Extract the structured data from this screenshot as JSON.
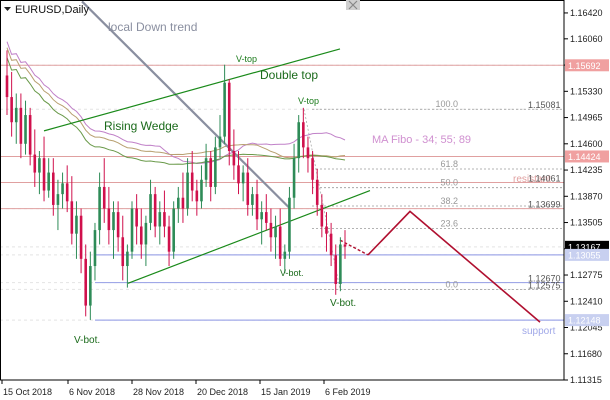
{
  "chart_data": {
    "type": "candlestick",
    "title": "EURUSD,Daily",
    "x_tick_labels": [
      "15 Oct 2018",
      "6 Nov 2018",
      "28 Nov 2018",
      "20 Dec 2018",
      "15 Jan 2019",
      "6 Feb 2019"
    ],
    "y_tick_labels": [
      "1.16420",
      "1.16060",
      "1.15695",
      "1.15330",
      "1.14965",
      "1.14600",
      "1.14235",
      "1.13870",
      "1.13505",
      "1.13140",
      "1.12775",
      "1.12410",
      "1.12045",
      "1.11680",
      "1.11315"
    ],
    "ylim": [
      1.11315,
      1.166
    ],
    "current_price": "1.13167",
    "price_labels": [
      {
        "text": "1.15692",
        "value": 1.15692,
        "color": "#f0a0a0",
        "kind": "box"
      },
      {
        "text": "1.15081",
        "value": 1.15081,
        "color": "#333333",
        "kind": "plain"
      },
      {
        "text": "1.14424",
        "value": 1.14424,
        "color": "#f0a0a0",
        "kind": "box"
      },
      {
        "text": "1.14061",
        "value": 1.14061,
        "color": "#333333",
        "kind": "plain"
      },
      {
        "text": "1.13699",
        "value": 1.13699,
        "color": "#333333",
        "kind": "plain"
      },
      {
        "text": "1.13167",
        "value": 1.13167,
        "color": "#000000",
        "kind": "box"
      },
      {
        "text": "1.13055",
        "value": 1.13055,
        "color": "#c8d0f0",
        "kind": "box"
      },
      {
        "text": "1.12670",
        "value": 1.1267,
        "color": "#333333",
        "kind": "plain"
      },
      {
        "text": "1.12575",
        "value": 1.12575,
        "color": "#333333",
        "kind": "plain"
      },
      {
        "text": "1.12148",
        "value": 1.12148,
        "color": "#c8d0f0",
        "kind": "box"
      }
    ],
    "fibo_levels": [
      {
        "label": "100.0",
        "value": 1.15081
      },
      {
        "label": "61.8",
        "value": 1.1425
      },
      {
        "label": "50.0",
        "value": 1.1399
      },
      {
        "label": "38.2",
        "value": 1.13735
      },
      {
        "label": "23.6",
        "value": 1.1342
      },
      {
        "label": "0.0",
        "value": 1.12575
      }
    ],
    "annotations": [
      "local Down trend",
      "V-top",
      "Double top",
      "V-top",
      "Rising Wedge",
      "MA Fibo - 34; 55; 89",
      "resistant",
      "V-bot.",
      "V-bot.",
      "V-bot.",
      "support"
    ],
    "colors": {
      "bull": "#2e8b57",
      "bear": "#d0104c",
      "wedge": "#1a8a1a",
      "downtrend": "#8a8fa0",
      "ma34": "#c080c8",
      "ma55": "#b8a070",
      "ma89": "#6a9a4a",
      "resistant": "#e0a0a0",
      "support": "#a0a8e8",
      "forecast": "#b01030"
    },
    "ma_legend": "MA Fibo - 34; 55; 89",
    "candles": [
      [
        1.1555,
        1.159,
        1.15,
        1.1525
      ],
      [
        1.1525,
        1.156,
        1.147,
        1.149
      ],
      [
        1.149,
        1.153,
        1.146,
        1.151
      ],
      [
        1.151,
        1.153,
        1.144,
        1.146
      ],
      [
        1.146,
        1.152,
        1.1445,
        1.15
      ],
      [
        1.15,
        1.151,
        1.143,
        1.1445
      ],
      [
        1.1445,
        1.148,
        1.14,
        1.142
      ],
      [
        1.142,
        1.145,
        1.139,
        1.144
      ],
      [
        1.144,
        1.147,
        1.138,
        1.1395
      ],
      [
        1.1395,
        1.144,
        1.1385,
        1.142
      ],
      [
        1.142,
        1.144,
        1.136,
        1.1375
      ],
      [
        1.1375,
        1.141,
        1.134,
        1.139
      ],
      [
        1.139,
        1.142,
        1.137,
        1.1405
      ],
      [
        1.1405,
        1.143,
        1.1365,
        1.138
      ],
      [
        1.138,
        1.1415,
        1.132,
        1.1335
      ],
      [
        1.1335,
        1.138,
        1.13,
        1.136
      ],
      [
        1.136,
        1.137,
        1.128,
        1.13
      ],
      [
        1.13,
        1.132,
        1.122,
        1.1235
      ],
      [
        1.1235,
        1.131,
        1.1215,
        1.129
      ],
      [
        1.129,
        1.135,
        1.127,
        1.134
      ],
      [
        1.134,
        1.142,
        1.132,
        1.14
      ],
      [
        1.14,
        1.144,
        1.135,
        1.137
      ],
      [
        1.137,
        1.14,
        1.132,
        1.134
      ],
      [
        1.134,
        1.138,
        1.13,
        1.1365
      ],
      [
        1.1365,
        1.138,
        1.131,
        1.133
      ],
      [
        1.133,
        1.136,
        1.127,
        1.129
      ],
      [
        1.129,
        1.132,
        1.126,
        1.131
      ],
      [
        1.131,
        1.138,
        1.13,
        1.137
      ],
      [
        1.137,
        1.139,
        1.132,
        1.1345
      ],
      [
        1.1345,
        1.137,
        1.13,
        1.132
      ],
      [
        1.132,
        1.136,
        1.129,
        1.135
      ],
      [
        1.135,
        1.141,
        1.134,
        1.139
      ],
      [
        1.139,
        1.14,
        1.133,
        1.1345
      ],
      [
        1.1345,
        1.138,
        1.132,
        1.1365
      ],
      [
        1.1365,
        1.1395,
        1.133,
        1.1345
      ],
      [
        1.1345,
        1.136,
        1.129,
        1.131
      ],
      [
        1.131,
        1.138,
        1.13,
        1.137
      ],
      [
        1.137,
        1.14,
        1.135,
        1.1385
      ],
      [
        1.1385,
        1.142,
        1.135,
        1.137
      ],
      [
        1.137,
        1.144,
        1.136,
        1.142
      ],
      [
        1.142,
        1.145,
        1.138,
        1.1395
      ],
      [
        1.1395,
        1.141,
        1.136,
        1.138
      ],
      [
        1.138,
        1.143,
        1.137,
        1.141
      ],
      [
        1.141,
        1.146,
        1.14,
        1.144
      ],
      [
        1.144,
        1.145,
        1.138,
        1.14
      ],
      [
        1.14,
        1.147,
        1.139,
        1.1455
      ],
      [
        1.1455,
        1.15,
        1.144,
        1.147
      ],
      [
        1.147,
        1.157,
        1.146,
        1.1545
      ],
      [
        1.1545,
        1.155,
        1.143,
        1.145
      ],
      [
        1.145,
        1.148,
        1.141,
        1.143
      ],
      [
        1.143,
        1.145,
        1.139,
        1.1405
      ],
      [
        1.1405,
        1.143,
        1.138,
        1.142
      ],
      [
        1.142,
        1.144,
        1.136,
        1.1375
      ],
      [
        1.1375,
        1.14,
        1.136,
        1.139
      ],
      [
        1.139,
        1.141,
        1.134,
        1.1355
      ],
      [
        1.1355,
        1.138,
        1.132,
        1.1365
      ],
      [
        1.1365,
        1.139,
        1.134,
        1.135
      ],
      [
        1.135,
        1.137,
        1.131,
        1.133
      ],
      [
        1.133,
        1.136,
        1.13,
        1.1345
      ],
      [
        1.1345,
        1.137,
        1.129,
        1.13
      ],
      [
        1.13,
        1.132,
        1.128,
        1.131
      ],
      [
        1.131,
        1.14,
        1.13,
        1.1385
      ],
      [
        1.1385,
        1.146,
        1.137,
        1.144
      ],
      [
        1.144,
        1.15,
        1.142,
        1.149
      ],
      [
        1.149,
        1.151,
        1.144,
        1.1455
      ],
      [
        1.1455,
        1.147,
        1.142,
        1.144
      ],
      [
        1.144,
        1.145,
        1.139,
        1.141
      ],
      [
        1.141,
        1.1425,
        1.136,
        1.1375
      ],
      [
        1.1375,
        1.139,
        1.133,
        1.1345
      ],
      [
        1.1345,
        1.1365,
        1.131,
        1.1335
      ],
      [
        1.1335,
        1.135,
        1.129,
        1.1305
      ],
      [
        1.1305,
        1.132,
        1.125,
        1.1265
      ],
      [
        1.1265,
        1.133,
        1.1255,
        1.132
      ],
      [
        1.132,
        1.134,
        1.13,
        1.1317
      ]
    ]
  },
  "title_text": "EURUSD,Daily"
}
